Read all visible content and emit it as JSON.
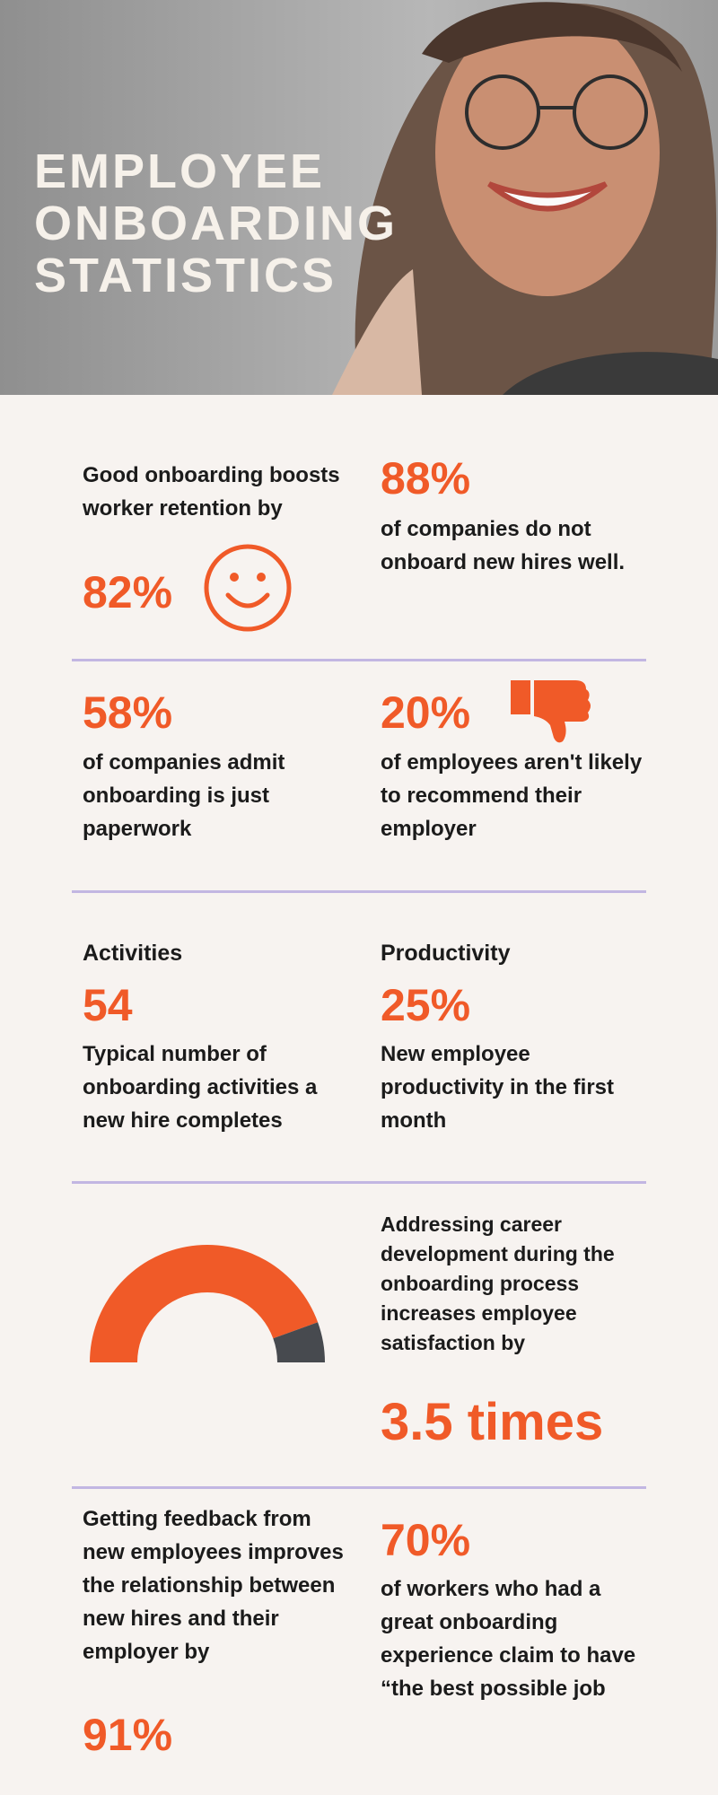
{
  "header": {
    "title_lines": [
      "EMPLOYEE",
      "ONBOARDING",
      "STATISTICS"
    ]
  },
  "stats": [
    {
      "text": "Good onboarding boosts worker retention by",
      "value": "82%"
    },
    {
      "value": "88%",
      "text": "of companies do not onboard new hires well."
    },
    {
      "value": "58%",
      "text": "of companies admit onboarding is just paperwork"
    },
    {
      "value": "20%",
      "text": "of employees aren't likely to recommend their employer"
    },
    {
      "heading": "Activities",
      "value": "54",
      "text": "Typical number of onboarding activities a new hire completes"
    },
    {
      "heading": "Productivity",
      "value": "25%",
      "text": "New employee productivity in the first month"
    },
    {
      "text": "Addressing career development during the onboarding process increases employee satisfaction by",
      "value": "3.5 times"
    },
    {
      "text": "Getting feedback from new employees improves the relationship between new hires and their employer by",
      "value": "91%"
    },
    {
      "value": "70%",
      "text": "of workers who had a great onboarding experience claim to have “the best possible job"
    }
  ]
}
